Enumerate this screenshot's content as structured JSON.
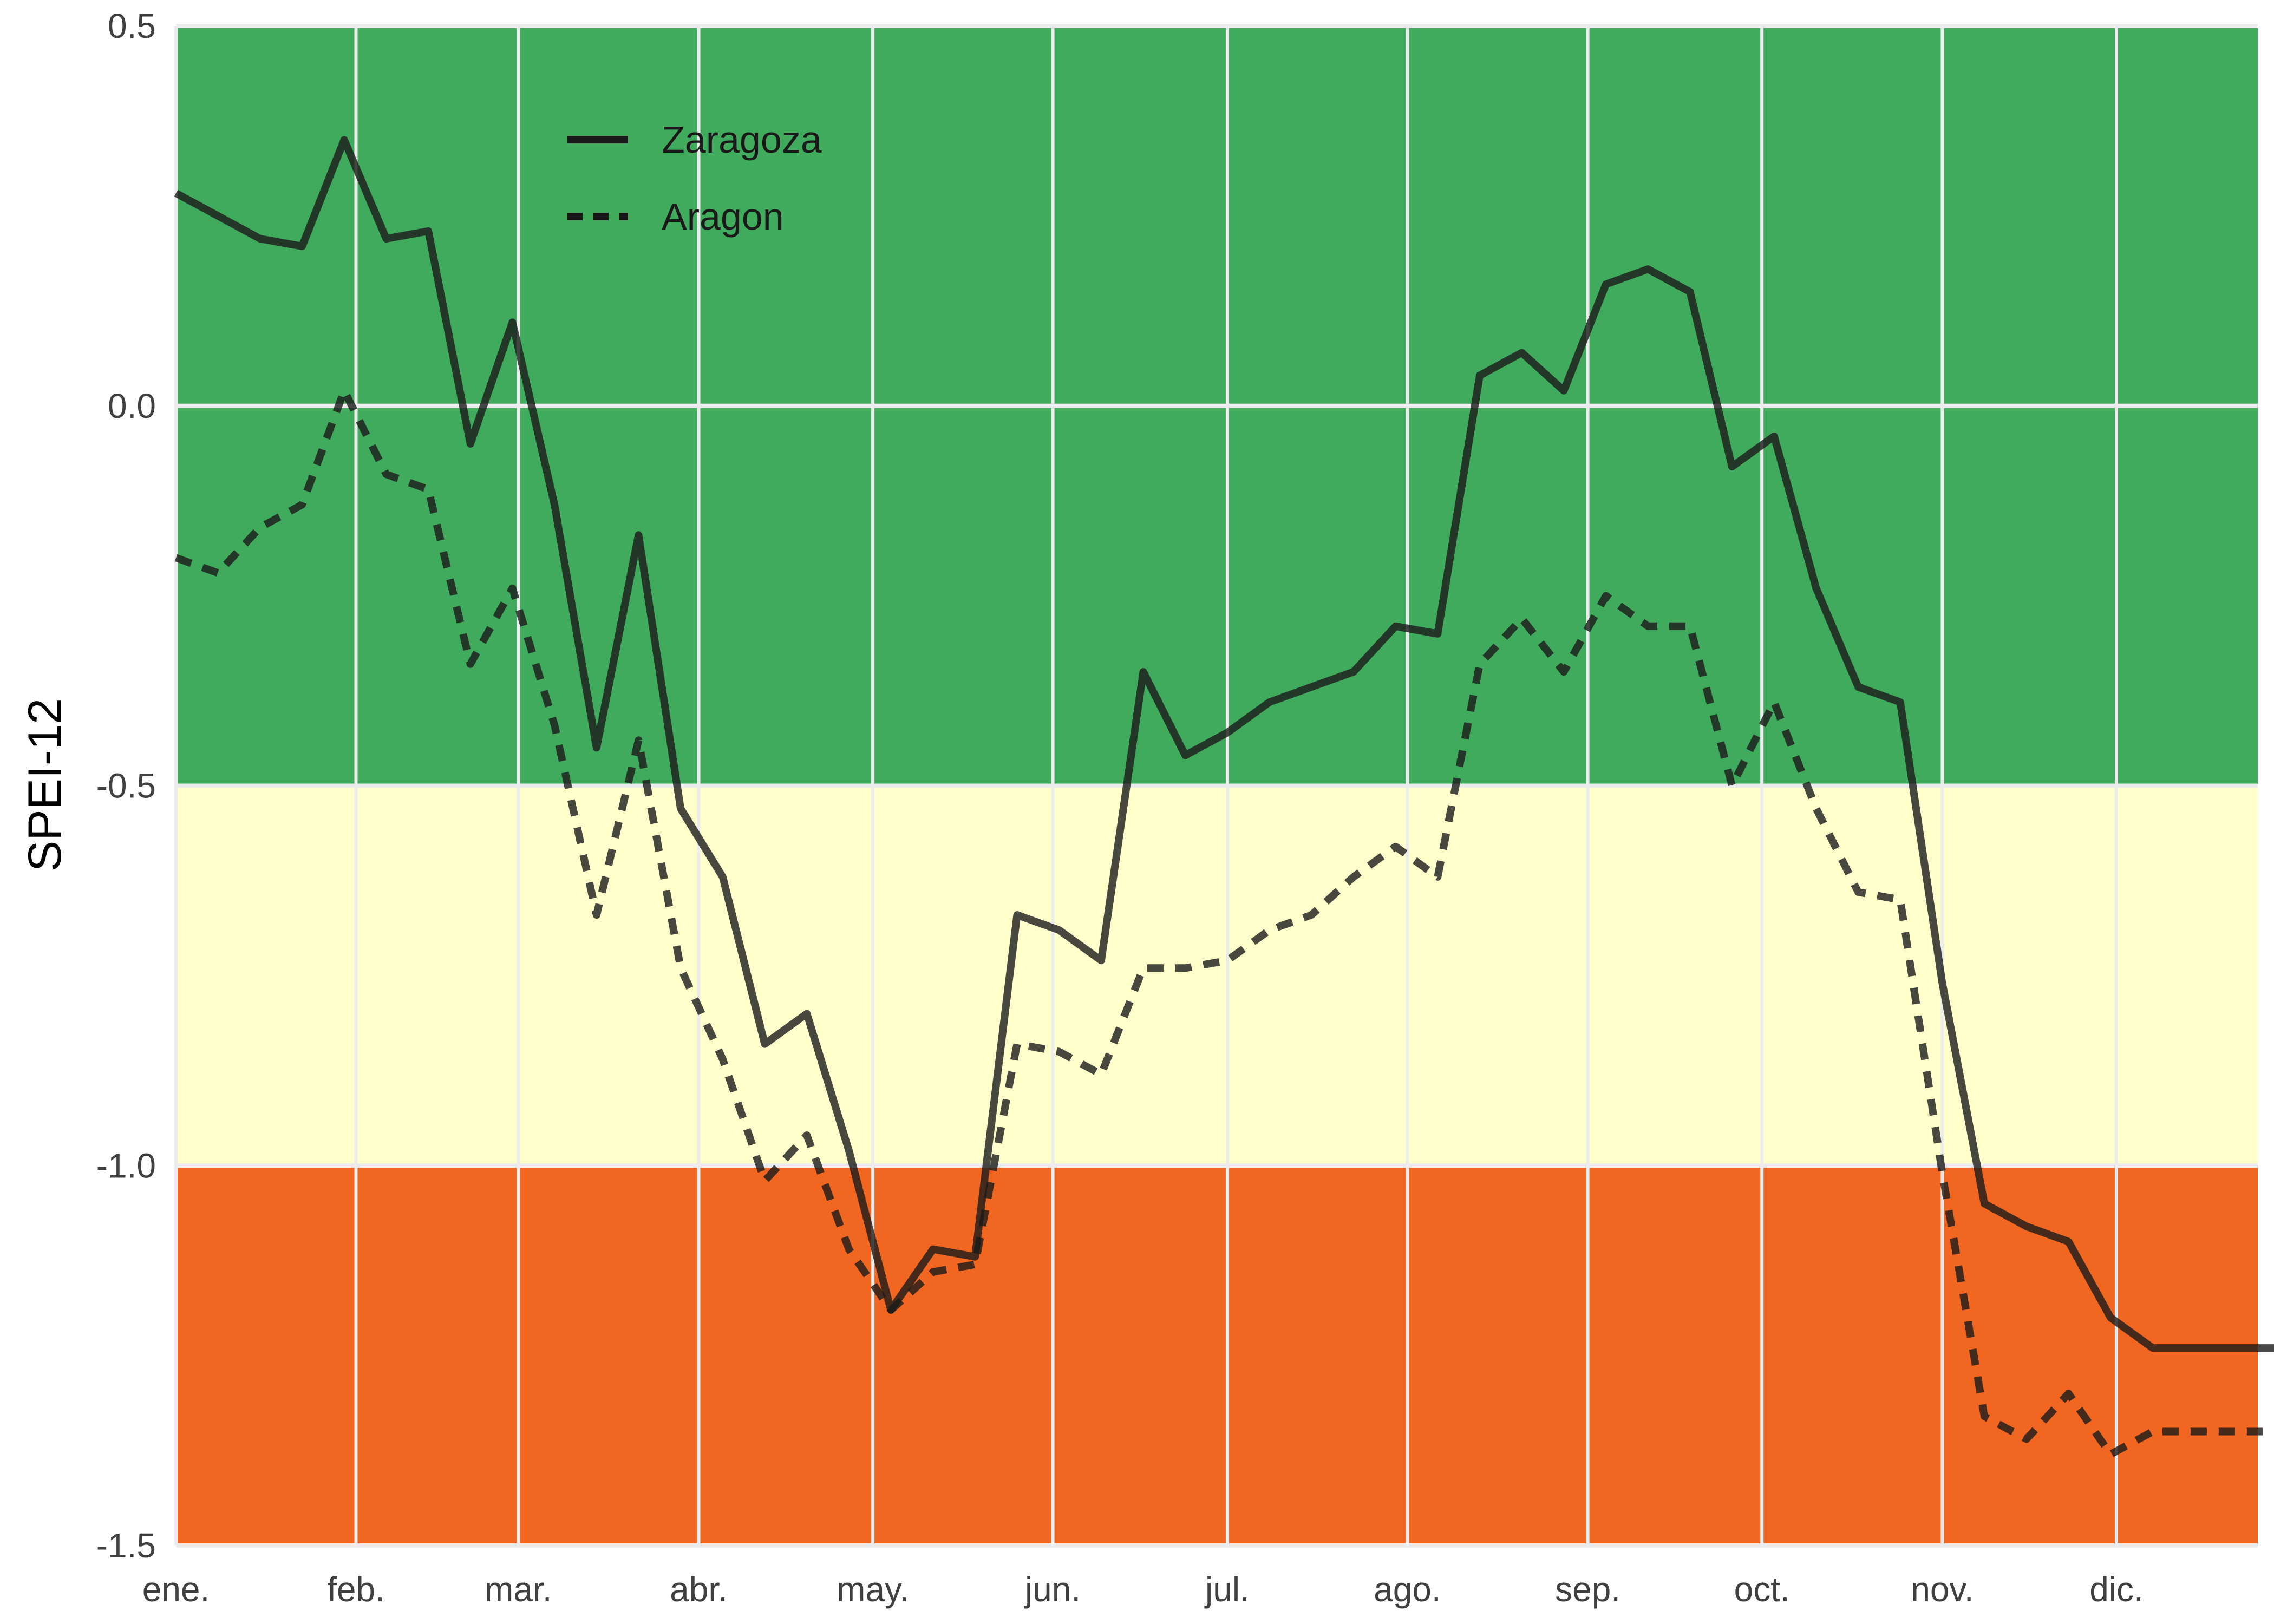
{
  "chart_data": {
    "type": "line",
    "title": "",
    "xlabel": "",
    "ylabel": "SPEI-12",
    "ylim": [
      -1.5,
      0.5
    ],
    "x_unit": "week of year",
    "xlim": [
      0,
      49.5
    ],
    "x_ticks": [
      {
        "label": "ene.",
        "x": 0
      },
      {
        "label": "feb.",
        "x": 4.28
      },
      {
        "label": "mar.",
        "x": 8.14
      },
      {
        "label": "abr.",
        "x": 12.43
      },
      {
        "label": "may.",
        "x": 16.57
      },
      {
        "label": "jun.",
        "x": 20.85
      },
      {
        "label": "jul.",
        "x": 25
      },
      {
        "label": "ago.",
        "x": 29.28
      },
      {
        "label": "sep.",
        "x": 33.57
      },
      {
        "label": "oct.",
        "x": 37.71
      },
      {
        "label": "nov.",
        "x": 42
      },
      {
        "label": "dic.",
        "x": 46.14
      }
    ],
    "y_ticks": [
      "0.5",
      "0.0",
      "-0.5",
      "-1.0",
      "-1.5"
    ],
    "y_tick_values": [
      0.5,
      0.0,
      -0.5,
      -1.0,
      -1.5
    ],
    "bands": [
      {
        "from": -0.5,
        "to": 0.5,
        "color": "#41ab5d"
      },
      {
        "from": -1.0,
        "to": -0.5,
        "color": "#ffffcc"
      },
      {
        "from": -1.5,
        "to": -1.0,
        "color": "#f16620"
      }
    ],
    "grid": true,
    "legend_position": "top-left",
    "x": [
      0,
      1,
      2,
      3,
      4,
      5,
      6,
      7,
      8,
      9,
      10,
      11,
      12,
      13,
      14,
      15,
      16,
      17,
      18,
      19,
      20,
      21,
      22,
      23,
      24,
      25,
      26,
      27,
      28,
      29,
      30,
      31,
      32,
      33,
      34,
      35,
      36,
      37,
      38,
      39,
      40,
      41,
      42,
      43,
      44,
      45,
      46,
      47,
      48,
      49,
      50
    ],
    "series": [
      {
        "name": "Zaragoza",
        "style": "solid",
        "color": "#1a1a1a",
        "values": [
          0.28,
          0.25,
          0.22,
          0.21,
          0.35,
          0.22,
          0.23,
          -0.05,
          0.11,
          -0.13,
          -0.45,
          -0.17,
          -0.53,
          -0.62,
          -0.84,
          -0.8,
          -0.98,
          -1.19,
          -1.11,
          -1.12,
          -0.67,
          -0.69,
          -0.73,
          -0.35,
          -0.46,
          -0.43,
          -0.39,
          -0.37,
          -0.35,
          -0.29,
          -0.3,
          0.04,
          0.07,
          0.02,
          0.16,
          0.18,
          0.15,
          -0.08,
          -0.04,
          -0.24,
          -0.37,
          -0.39,
          -0.76,
          -1.05,
          -1.08,
          -1.1,
          -1.2,
          -1.24,
          -1.24,
          -1.24,
          -1.24
        ]
      },
      {
        "name": "Aragon",
        "style": "dashed",
        "color": "#1a1a1a",
        "values": [
          -0.2,
          -0.22,
          -0.16,
          -0.13,
          0.02,
          -0.09,
          -0.11,
          -0.34,
          -0.24,
          -0.42,
          -0.67,
          -0.44,
          -0.74,
          -0.86,
          -1.02,
          -0.96,
          -1.11,
          -1.19,
          -1.14,
          -1.13,
          -0.84,
          -0.85,
          -0.88,
          -0.74,
          -0.74,
          -0.73,
          -0.69,
          -0.67,
          -0.62,
          -0.58,
          -0.62,
          -0.34,
          -0.28,
          -0.35,
          -0.25,
          -0.29,
          -0.29,
          -0.5,
          -0.39,
          -0.53,
          -0.64,
          -0.65,
          -1.01,
          -1.33,
          -1.36,
          -1.3,
          -1.38,
          -1.35,
          -1.35,
          -1.35,
          -1.35
        ]
      }
    ]
  }
}
